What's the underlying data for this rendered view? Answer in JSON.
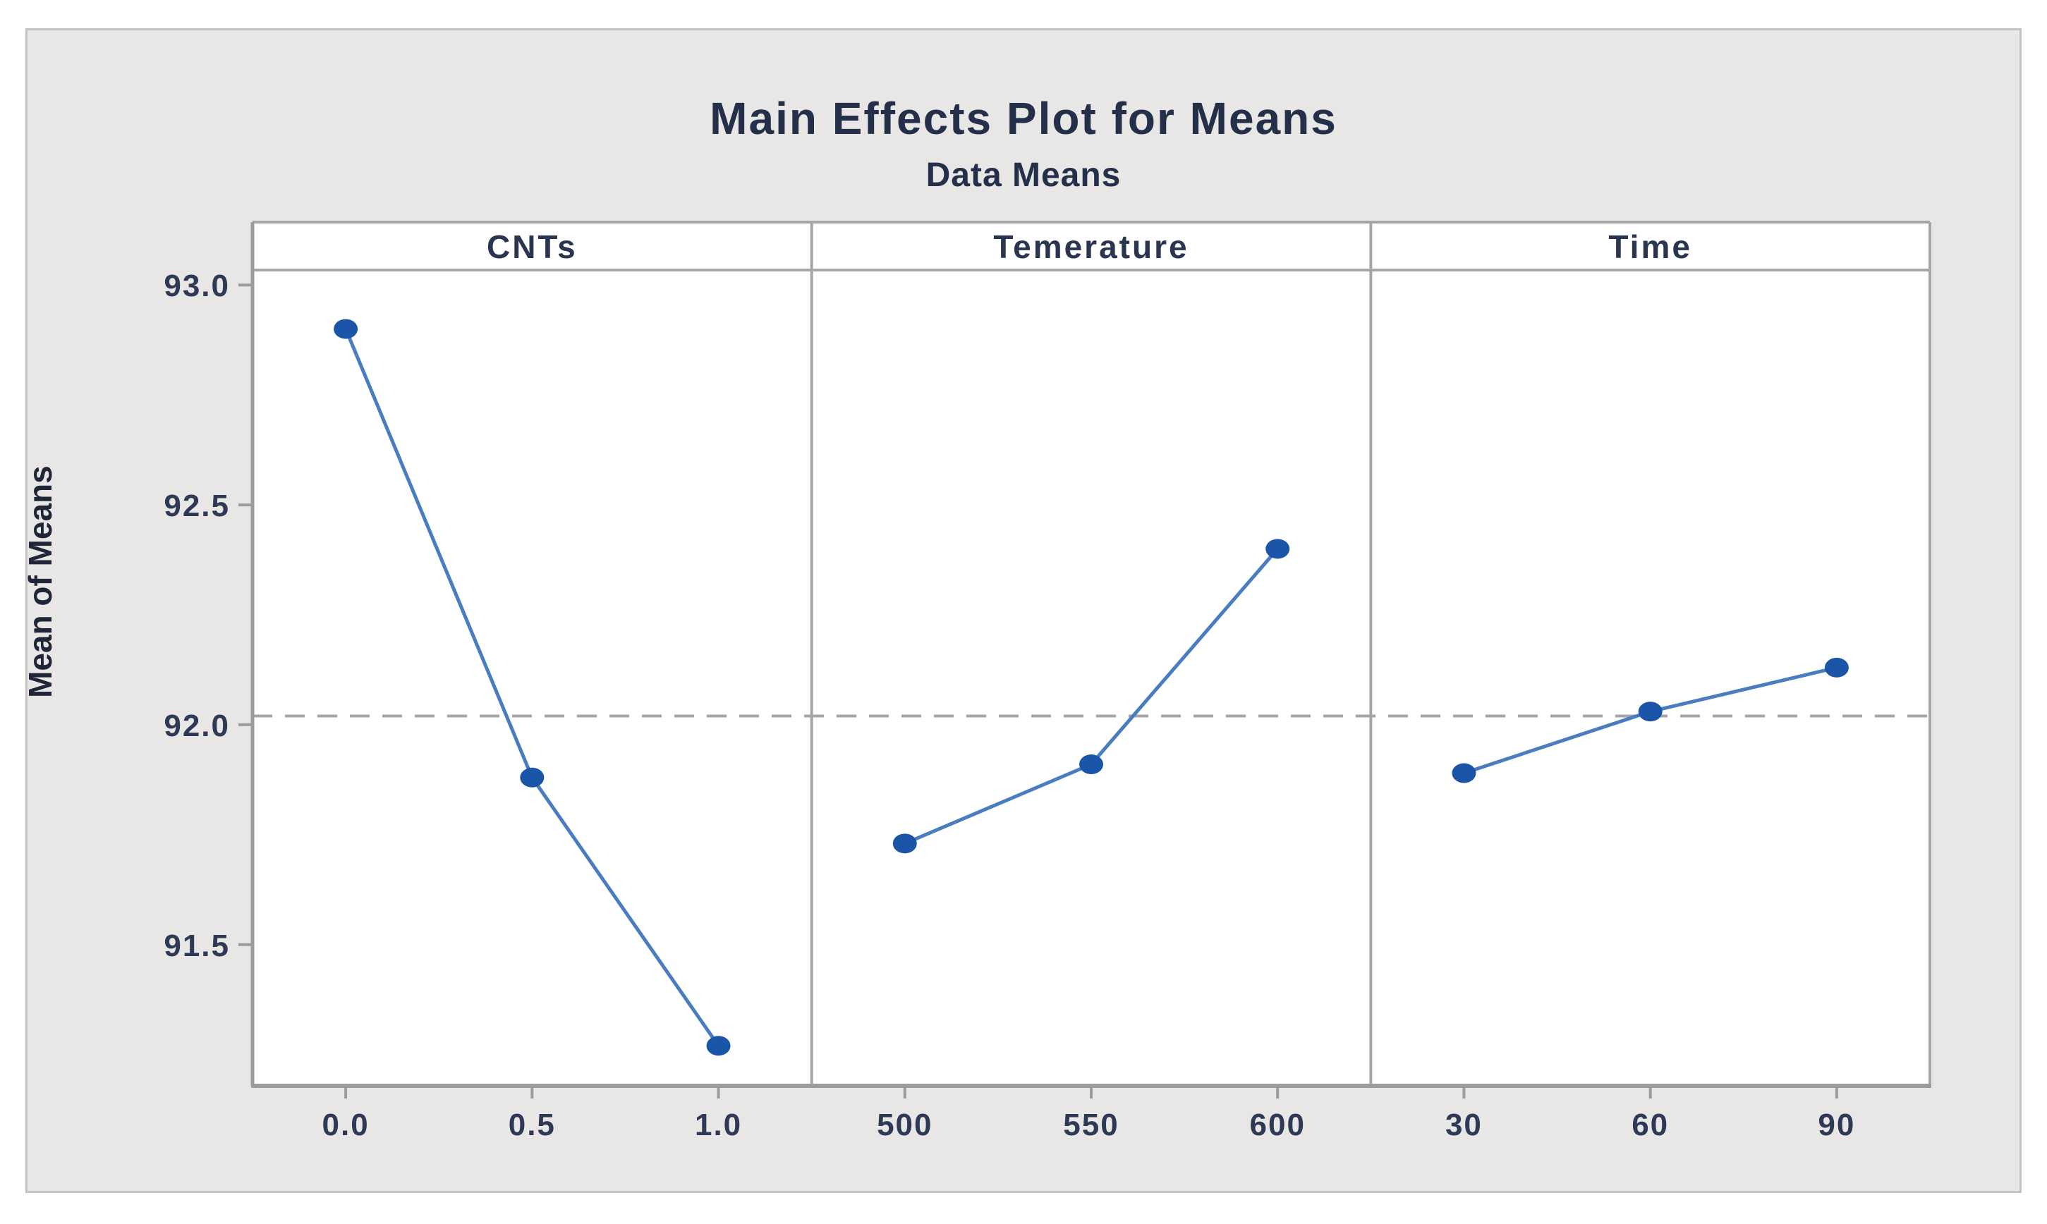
{
  "figure": {
    "title": "Main Effects Plot for Means",
    "subtitle": "Data Means",
    "ylabel": "Mean of Means"
  },
  "chart_data": {
    "type": "line",
    "title": "Main Effects Plot for Means",
    "subtitle": "Data Means",
    "xlabel": "",
    "ylabel": "Mean of Means",
    "ylim": [
      91.179,
      93.034
    ],
    "yticks": [
      "93.0",
      "92.5",
      "92.0",
      "91.5"
    ],
    "ytick_values": [
      93.0,
      92.5,
      92.0,
      91.5
    ],
    "grid": false,
    "legend": "none",
    "reference_line": {
      "value": 92.02,
      "style": "dashed",
      "meaning": "overall mean of means"
    },
    "panels": [
      {
        "label": "CNTs",
        "categories": [
          "0.0",
          "0.5",
          "1.0"
        ],
        "values": [
          92.9,
          91.88,
          91.27
        ]
      },
      {
        "label": "Temerature",
        "categories": [
          "500",
          "550",
          "600"
        ],
        "values": [
          91.73,
          91.91,
          92.4
        ]
      },
      {
        "label": "Time",
        "categories": [
          "30",
          "60",
          "90"
        ],
        "values": [
          91.89,
          92.03,
          92.13
        ]
      }
    ]
  },
  "colors": {
    "figure_background": "#e9e7e6",
    "panel_background": "#ffffff",
    "axis_gray": "#9c9c9c",
    "panel_border_gray": "#a8a6a5",
    "dashed_line": "#a6a6a6",
    "series_line": "#4a7cc0",
    "series_marker": "#1b55a8",
    "title_text": "#24304a",
    "label_text": "#2e3a55"
  }
}
